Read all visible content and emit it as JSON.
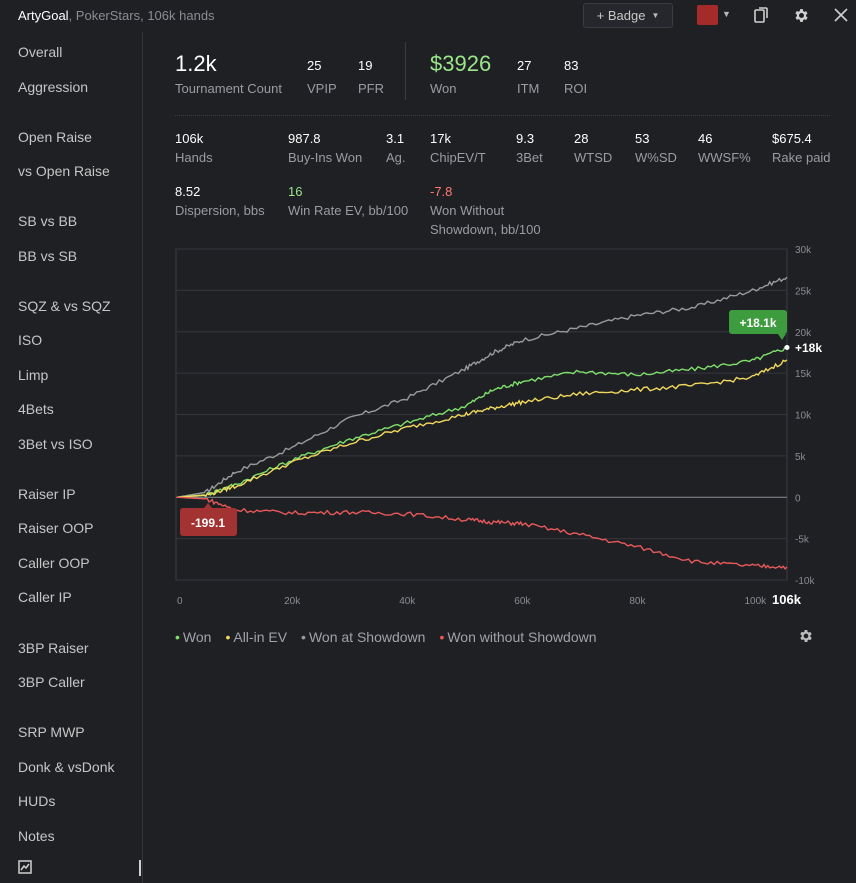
{
  "titlebar": {
    "player": "ArtyGoal",
    "subtitle": ", PokerStars, 106k hands",
    "badge_label": "+ Badge",
    "swatch_color": "#a52a2a",
    "icons": [
      "copy-icon",
      "gear-icon",
      "close-icon"
    ]
  },
  "sidebar": {
    "items": [
      {
        "label": "Overall"
      },
      {
        "label": "Aggression"
      },
      {
        "label": "Open Raise"
      },
      {
        "label": "vs Open Raise"
      },
      {
        "label": "SB vs BB"
      },
      {
        "label": "BB vs SB"
      },
      {
        "label": "SQZ & vs SQZ"
      },
      {
        "label": "ISO"
      },
      {
        "label": "Limp"
      },
      {
        "label": "4Bets"
      },
      {
        "label": "3Bet vs ISO"
      },
      {
        "label": "Raiser IP"
      },
      {
        "label": "Raiser OOP"
      },
      {
        "label": "Caller OOP"
      },
      {
        "label": "Caller IP"
      },
      {
        "label": "3BP Raiser"
      },
      {
        "label": "3BP Caller"
      },
      {
        "label": "SRP MWP"
      },
      {
        "label": "Donk & vsDonk"
      },
      {
        "label": "HUDs"
      },
      {
        "label": "Notes"
      }
    ]
  },
  "summary": {
    "tournament_count": {
      "value": "1.2k",
      "label": "Tournament Count"
    },
    "vpip": {
      "value": "25",
      "label": "VPIP"
    },
    "pfr": {
      "value": "19",
      "label": "PFR"
    },
    "won": {
      "value": "$3926",
      "label": "Won"
    },
    "itm": {
      "value": "27",
      "label": "ITM"
    },
    "roi": {
      "value": "83",
      "label": "ROI"
    }
  },
  "stats": {
    "hands": {
      "value": "106k",
      "label": "Hands"
    },
    "buyins": {
      "value": "987.8",
      "label": "Buy-Ins Won"
    },
    "ag": {
      "value": "3.1",
      "label": "Ag."
    },
    "chipev": {
      "value": "17k",
      "label": "ChipEV/T"
    },
    "threebet": {
      "value": "9.3",
      "label": "3Bet"
    },
    "wtsd": {
      "value": "28",
      "label": "WTSD"
    },
    "wsd": {
      "value": "53",
      "label": "W%SD"
    },
    "wwsf": {
      "value": "46",
      "label": "WWSF%"
    },
    "rake": {
      "value": "$675.4",
      "label": "Rake paid"
    },
    "dispersion": {
      "value": "8.52",
      "label": "Dispersion, bbs"
    },
    "winrate_ev": {
      "value": "16",
      "label": "Win Rate EV, bb/100"
    },
    "wwsd_line1": "Won Without",
    "wwsd_line2": "Showdown, bb/100",
    "wwsd_value": "-7.8"
  },
  "chart_data": {
    "type": "line",
    "x_ticks": [
      "0",
      "20k",
      "40k",
      "60k",
      "80k",
      "100k",
      "106k"
    ],
    "x_tick_values": [
      0,
      20000,
      40000,
      60000,
      80000,
      100000,
      106000
    ],
    "y_ticks": [
      "30k",
      "25k",
      "20k",
      "15k",
      "10k",
      "5k",
      "0",
      "-5k",
      "-10k"
    ],
    "y_tick_values": [
      30000,
      25000,
      20000,
      15000,
      10000,
      5000,
      0,
      -5000,
      -10000
    ],
    "xlim": [
      0,
      106000
    ],
    "ylim": [
      -10000,
      30000
    ],
    "grid": true,
    "legend_position": "bottom-left",
    "series": [
      {
        "name": "Won at Showdown",
        "color": "#9a9a9a",
        "x": [
          0,
          5000,
          10000,
          20000,
          30000,
          40000,
          50000,
          55000,
          60000,
          70000,
          80000,
          90000,
          100000,
          106000
        ],
        "y": [
          0,
          600,
          3000,
          6000,
          9500,
          12000,
          15500,
          17500,
          19000,
          20500,
          22000,
          23000,
          25000,
          26600
        ]
      },
      {
        "name": "Won",
        "color": "#7ee06a",
        "x": [
          0,
          5000,
          10000,
          20000,
          30000,
          40000,
          50000,
          55000,
          60000,
          70000,
          80000,
          90000,
          100000,
          106000
        ],
        "y": [
          0,
          300,
          1500,
          4500,
          7000,
          9000,
          11000,
          13000,
          14000,
          15200,
          14800,
          15500,
          16500,
          18100
        ]
      },
      {
        "name": "All-in EV",
        "color": "#f0d95c",
        "x": [
          0,
          5000,
          10000,
          20000,
          30000,
          40000,
          50000,
          55000,
          60000,
          70000,
          80000,
          90000,
          100000,
          106000
        ],
        "y": [
          0,
          250,
          1300,
          4200,
          6500,
          8400,
          10000,
          10800,
          11500,
          12500,
          13000,
          13500,
          14500,
          16600
        ]
      },
      {
        "name": "Won without Showdown",
        "color": "#e8595a",
        "x": [
          0,
          5000,
          10000,
          20000,
          30000,
          40000,
          50000,
          55000,
          60000,
          70000,
          80000,
          90000,
          100000,
          106000
        ],
        "y": [
          0,
          -199,
          -1500,
          -1900,
          -1800,
          -2000,
          -2700,
          -3000,
          -3200,
          -4500,
          -6000,
          -7800,
          -8300,
          -8400
        ]
      }
    ],
    "annotations": [
      {
        "text": "+18.1k",
        "x": 106000,
        "y": 18100,
        "color": "#3d9c3d"
      },
      {
        "text": "+18k",
        "x": 106000,
        "y": 18100
      },
      {
        "text": "-199.1",
        "x": 5000,
        "y": -199,
        "color": "#a33333"
      }
    ]
  }
}
